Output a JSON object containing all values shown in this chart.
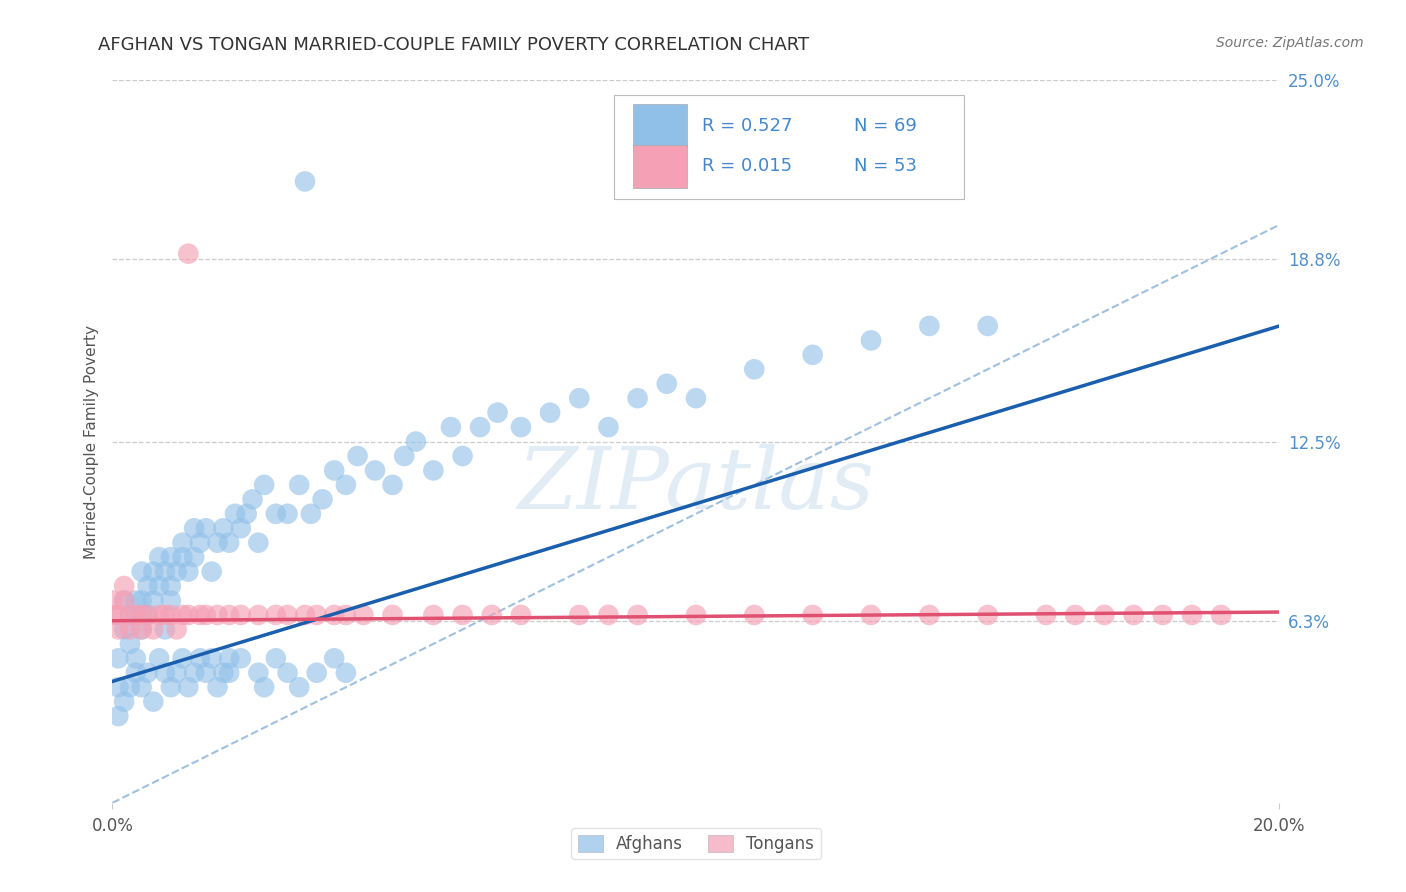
{
  "title": "AFGHAN VS TONGAN MARRIED-COUPLE FAMILY POVERTY CORRELATION CHART",
  "source_text": "Source: ZipAtlas.com",
  "ylabel": "Married-Couple Family Poverty",
  "xlim": [
    0.0,
    0.2
  ],
  "ylim": [
    0.0,
    0.25
  ],
  "xticks": [
    0.0,
    0.2
  ],
  "xticklabels": [
    "0.0%",
    "20.0%"
  ],
  "ytick_positions": [
    0.063,
    0.125,
    0.188,
    0.25
  ],
  "ytick_labels": [
    "6.3%",
    "12.5%",
    "18.8%",
    "25.0%"
  ],
  "grid_hlines": [
    0.063,
    0.125,
    0.188,
    0.25
  ],
  "afghan_color": "#90BFE8",
  "tongan_color": "#F5A0B5",
  "afghan_line_color": "#1a5fad",
  "tongan_line_color": "#e05070",
  "diag_color": "#a0c0e0",
  "legend_R_afghan": "R = 0.527",
  "legend_N_afghan": "N = 69",
  "legend_R_tongan": "R = 0.015",
  "legend_N_tongan": "N = 53",
  "watermark": "ZIPatlas",
  "background_color": "#ffffff",
  "legend_text_color": "#4488cc",
  "afghan_x": [
    0.001,
    0.001,
    0.002,
    0.002,
    0.003,
    0.003,
    0.004,
    0.004,
    0.005,
    0.005,
    0.005,
    0.006,
    0.006,
    0.007,
    0.007,
    0.008,
    0.008,
    0.009,
    0.009,
    0.01,
    0.01,
    0.01,
    0.011,
    0.012,
    0.012,
    0.013,
    0.014,
    0.014,
    0.015,
    0.016,
    0.017,
    0.018,
    0.019,
    0.02,
    0.021,
    0.022,
    0.023,
    0.024,
    0.025,
    0.026,
    0.028,
    0.03,
    0.032,
    0.034,
    0.036,
    0.038,
    0.04,
    0.042,
    0.045,
    0.048,
    0.05,
    0.052,
    0.055,
    0.058,
    0.06,
    0.063,
    0.066,
    0.07,
    0.075,
    0.08,
    0.085,
    0.09,
    0.095,
    0.1,
    0.11,
    0.12,
    0.13,
    0.14,
    0.15
  ],
  "afghan_y": [
    0.04,
    0.05,
    0.06,
    0.07,
    0.055,
    0.065,
    0.05,
    0.07,
    0.06,
    0.07,
    0.08,
    0.065,
    0.075,
    0.07,
    0.08,
    0.075,
    0.085,
    0.06,
    0.08,
    0.07,
    0.075,
    0.085,
    0.08,
    0.085,
    0.09,
    0.08,
    0.085,
    0.095,
    0.09,
    0.095,
    0.08,
    0.09,
    0.095,
    0.09,
    0.1,
    0.095,
    0.1,
    0.105,
    0.09,
    0.11,
    0.1,
    0.1,
    0.11,
    0.1,
    0.105,
    0.115,
    0.11,
    0.12,
    0.115,
    0.11,
    0.12,
    0.125,
    0.115,
    0.13,
    0.12,
    0.13,
    0.135,
    0.13,
    0.135,
    0.14,
    0.13,
    0.14,
    0.145,
    0.14,
    0.15,
    0.155,
    0.16,
    0.165,
    0.165
  ],
  "tongan_x": [
    0.0,
    0.0,
    0.001,
    0.001,
    0.002,
    0.002,
    0.003,
    0.003,
    0.004,
    0.005,
    0.005,
    0.006,
    0.007,
    0.008,
    0.009,
    0.01,
    0.011,
    0.012,
    0.013,
    0.015,
    0.016,
    0.018,
    0.02,
    0.022,
    0.025,
    0.028,
    0.03,
    0.033,
    0.035,
    0.038,
    0.04,
    0.043,
    0.048,
    0.055,
    0.06,
    0.065,
    0.07,
    0.08,
    0.085,
    0.09,
    0.1,
    0.11,
    0.12,
    0.13,
    0.14,
    0.15,
    0.16,
    0.165,
    0.17,
    0.175,
    0.18,
    0.185,
    0.19
  ],
  "tongan_y": [
    0.065,
    0.07,
    0.06,
    0.065,
    0.07,
    0.075,
    0.06,
    0.065,
    0.065,
    0.06,
    0.065,
    0.065,
    0.06,
    0.065,
    0.065,
    0.065,
    0.06,
    0.065,
    0.065,
    0.065,
    0.065,
    0.065,
    0.065,
    0.065,
    0.065,
    0.065,
    0.065,
    0.065,
    0.065,
    0.065,
    0.065,
    0.065,
    0.065,
    0.065,
    0.065,
    0.065,
    0.065,
    0.065,
    0.065,
    0.065,
    0.065,
    0.065,
    0.065,
    0.065,
    0.065,
    0.065,
    0.065,
    0.065,
    0.065,
    0.065,
    0.065,
    0.065,
    0.065
  ],
  "afghan_outlier_x": [
    0.033
  ],
  "afghan_outlier_y": [
    0.215
  ],
  "tongan_outlier1_x": [
    0.013
  ],
  "tongan_outlier1_y": [
    0.19
  ],
  "extra_afghan_low_x": [
    0.001,
    0.002,
    0.003,
    0.004,
    0.005,
    0.006,
    0.007,
    0.008,
    0.009,
    0.01,
    0.011,
    0.012,
    0.013,
    0.014,
    0.015,
    0.016,
    0.017,
    0.018,
    0.019,
    0.02,
    0.02,
    0.022,
    0.025,
    0.026,
    0.028,
    0.03,
    0.032,
    0.035,
    0.038,
    0.04
  ],
  "extra_afghan_low_y": [
    0.03,
    0.035,
    0.04,
    0.045,
    0.04,
    0.045,
    0.035,
    0.05,
    0.045,
    0.04,
    0.045,
    0.05,
    0.04,
    0.045,
    0.05,
    0.045,
    0.05,
    0.04,
    0.045,
    0.05,
    0.045,
    0.05,
    0.045,
    0.04,
    0.05,
    0.045,
    0.04,
    0.045,
    0.05,
    0.045
  ]
}
